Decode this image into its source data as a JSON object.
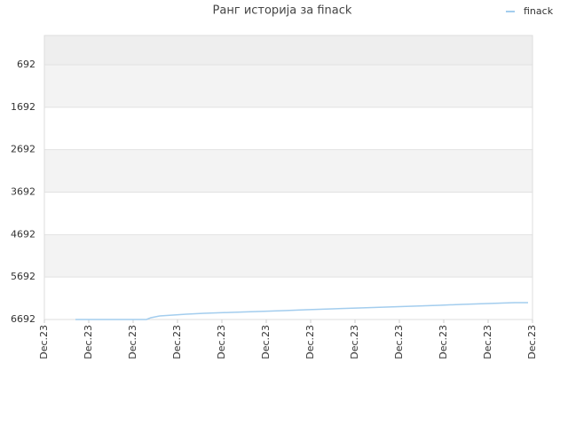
{
  "chart_data": {
    "type": "line",
    "title": "Ранг историја за finack",
    "ylim": [
      6692,
      2
    ],
    "yticks": [
      692,
      1692,
      2692,
      3692,
      4692,
      5692,
      6692
    ],
    "xlim": [
      0,
      11
    ],
    "xticks": [
      {
        "value": 0,
        "label": "Dec.23"
      },
      {
        "value": 1,
        "label": "Dec.23"
      },
      {
        "value": 2,
        "label": "Dec.23"
      },
      {
        "value": 3,
        "label": "Dec.23"
      },
      {
        "value": 4,
        "label": "Dec.23"
      },
      {
        "value": 5,
        "label": "Dec.23"
      },
      {
        "value": 6,
        "label": "Dec.23"
      },
      {
        "value": 7,
        "label": "Dec.23"
      },
      {
        "value": 8,
        "label": "Dec.23"
      },
      {
        "value": 9,
        "label": "Dec.23"
      },
      {
        "value": 10,
        "label": "Dec.23"
      },
      {
        "value": 11,
        "label": "Dec.23"
      }
    ],
    "series": [
      {
        "name": "finack",
        "color": "#a3cdee",
        "x": [
          0.7,
          2.3,
          2.4,
          2.6,
          2.9,
          3.2,
          3.6,
          4.2,
          4.8,
          5.4,
          5.9,
          6.5,
          7.1,
          7.7,
          8.3,
          8.9,
          9.4,
          10.0,
          10.6,
          10.9
        ],
        "values": [
          6692,
          6692,
          6650,
          6608,
          6587,
          6567,
          6546,
          6525,
          6504,
          6483,
          6462,
          6441,
          6420,
          6399,
          6378,
          6357,
          6336,
          6316,
          6295,
          6295
        ]
      }
    ],
    "legend": "top-right",
    "grid": true
  }
}
